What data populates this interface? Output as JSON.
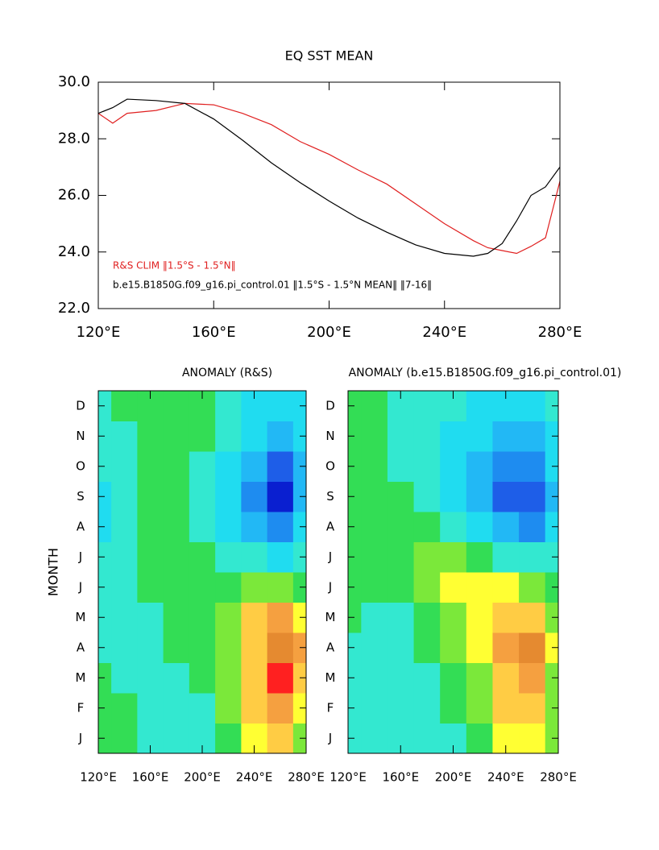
{
  "chart_data": [
    {
      "type": "line",
      "title": "EQ SST MEAN",
      "x": [
        120,
        125,
        130,
        140,
        150,
        160,
        170,
        180,
        190,
        200,
        210,
        220,
        230,
        240,
        250,
        255,
        260,
        265,
        270,
        275,
        280
      ],
      "series": [
        {
          "name": "R&S CLIM ‖1.5°S - 1.5°N‖",
          "color": "#e02020",
          "values": [
            28.9,
            28.55,
            28.9,
            29.0,
            29.25,
            29.2,
            28.9,
            28.5,
            27.9,
            27.45,
            26.9,
            26.4,
            25.7,
            25.0,
            24.4,
            24.15,
            24.05,
            23.95,
            24.2,
            24.5,
            26.5
          ]
        },
        {
          "name": "b.e15.B1850G.f09_g16.pi_control.01 ‖1.5°S - 1.5°N MEAN‖ ‖7-16‖",
          "color": "#000000",
          "values": [
            28.9,
            29.1,
            29.4,
            29.35,
            29.25,
            28.7,
            27.95,
            27.15,
            26.45,
            25.8,
            25.2,
            24.7,
            24.25,
            23.95,
            23.85,
            23.95,
            24.3,
            25.1,
            26.0,
            26.3,
            27.0
          ]
        }
      ],
      "xlim": [
        120,
        280
      ],
      "xticks": [
        {
          "value": 120,
          "label": "120°E"
        },
        {
          "value": 160,
          "label": "160°E"
        },
        {
          "value": 200,
          "label": "200°E"
        },
        {
          "value": 240,
          "label": "240°E"
        },
        {
          "value": 280,
          "label": "280°E"
        }
      ],
      "ylim": [
        22,
        30
      ],
      "yticks": [
        {
          "value": 22,
          "label": "22.0"
        },
        {
          "value": 24,
          "label": "24.0"
        },
        {
          "value": 26,
          "label": "26.0"
        },
        {
          "value": 28,
          "label": "28.0"
        },
        {
          "value": 30,
          "label": "30.0"
        }
      ]
    },
    {
      "type": "contour",
      "title": "ANOMALY (R&S)",
      "ylabel": "MONTH",
      "x": [
        120,
        140,
        160,
        180,
        200,
        220,
        240,
        260,
        280
      ],
      "categories": [
        "J",
        "F",
        "M",
        "A",
        "M",
        "J",
        "J",
        "A",
        "S",
        "O",
        "N",
        "D"
      ],
      "z": [
        [
          0.1,
          0.1,
          -0.1,
          -0.3,
          -0.3,
          0.2,
          0.8,
          1.2,
          0.6
        ],
        [
          0.1,
          0,
          -0.1,
          -0.2,
          -0.1,
          0.4,
          1.2,
          1.8,
          1.0
        ],
        [
          0,
          -0.1,
          -0.1,
          -0.1,
          0.1,
          0.6,
          1.5,
          2.5,
          1.4
        ],
        [
          -0.1,
          -0.2,
          -0.1,
          0,
          0.2,
          0.6,
          1.5,
          2.1,
          1.6
        ],
        [
          -0.2,
          -0.3,
          -0.1,
          0.1,
          0.2,
          0.5,
          1.2,
          1.6,
          1.0
        ],
        [
          -0.2,
          -0.2,
          0.1,
          0.2,
          0.2,
          0.3,
          0.4,
          0.4,
          0.2
        ],
        [
          -0.3,
          -0.2,
          0.1,
          0.2,
          0.1,
          -0.1,
          -0.4,
          -0.6,
          -0.4
        ],
        [
          -0.6,
          -0.2,
          0.1,
          0.1,
          -0.1,
          -0.5,
          -1.0,
          -1.5,
          -0.8
        ],
        [
          -0.6,
          -0.3,
          0,
          0.1,
          -0.2,
          -0.6,
          -1.3,
          -2.1,
          -1.0
        ],
        [
          -0.3,
          -0.2,
          0,
          0.1,
          -0.1,
          -0.5,
          -1.2,
          -1.7,
          -0.9
        ],
        [
          -0.2,
          -0.1,
          0.1,
          0.2,
          0,
          -0.3,
          -0.8,
          -1.0,
          -0.6
        ],
        [
          -0.1,
          0,
          0.1,
          0.2,
          0,
          -0.3,
          -0.6,
          -0.8,
          -0.5
        ]
      ],
      "levels": [
        -2,
        -1.6,
        -1.2,
        -0.8,
        -0.4,
        0,
        0.4,
        0.8,
        1.2,
        1.6,
        2,
        2.4
      ],
      "colors": [
        "#0a1fd0",
        "#1e5ee8",
        "#1e8cf0",
        "#22b8f5",
        "#20dcf0",
        "#33e8d0",
        "#33dd55",
        "#7be83a",
        "#ffff33",
        "#ffcc44",
        "#f5a040",
        "#e58a30",
        "#ff2020"
      ],
      "xlim": [
        120,
        280
      ],
      "xticks": [
        {
          "value": 120,
          "label": "120°E"
        },
        {
          "value": 160,
          "label": "160°E"
        },
        {
          "value": 200,
          "label": "200°E"
        },
        {
          "value": 240,
          "label": "240°E"
        },
        {
          "value": 280,
          "label": "280°E"
        }
      ]
    },
    {
      "type": "contour",
      "title": "ANOMALY (b.e15.B1850G.f09_g16.pi_control.01)",
      "x": [
        120,
        140,
        160,
        180,
        200,
        220,
        240,
        260,
        280
      ],
      "categories": [
        "J",
        "F",
        "M",
        "A",
        "M",
        "J",
        "J",
        "A",
        "S",
        "O",
        "N",
        "D"
      ],
      "z": [
        [
          -0.2,
          -0.3,
          -0.4,
          -0.3,
          -0.2,
          0.2,
          0.8,
          1.0,
          0.4
        ],
        [
          -0.2,
          -0.3,
          -0.4,
          -0.2,
          0.1,
          0.5,
          1.2,
          1.3,
          0.5
        ],
        [
          -0.1,
          -0.2,
          -0.3,
          -0.1,
          0.2,
          0.7,
          1.4,
          1.8,
          0.6
        ],
        [
          -0.1,
          -0.2,
          -0.2,
          0,
          0.4,
          0.9,
          1.6,
          2.2,
          0.8
        ],
        [
          0,
          -0.1,
          -0.1,
          0.2,
          0.6,
          1.0,
          1.4,
          1.4,
          0.6
        ],
        [
          0.1,
          0,
          0.1,
          0.5,
          0.9,
          0.9,
          0.8,
          0.6,
          0.2
        ],
        [
          0.1,
          0.1,
          0.3,
          0.7,
          0.6,
          0.3,
          -0.2,
          -0.4,
          -0.2
        ],
        [
          0.1,
          0,
          0.3,
          0.3,
          -0.1,
          -0.6,
          -1.2,
          -1.4,
          -0.8
        ],
        [
          0.2,
          0,
          0,
          -0.1,
          -0.5,
          -1.1,
          -1.8,
          -1.8,
          -1.0
        ],
        [
          0.2,
          0,
          -0.1,
          -0.3,
          -0.6,
          -1.1,
          -1.5,
          -1.4,
          -0.8
        ],
        [
          0.2,
          0,
          -0.1,
          -0.3,
          -0.5,
          -0.8,
          -1.0,
          -1.0,
          -0.6
        ],
        [
          0.1,
          0,
          -0.1,
          -0.2,
          -0.3,
          -0.5,
          -0.7,
          -0.7,
          -0.4
        ]
      ],
      "levels": [
        -2,
        -1.6,
        -1.2,
        -0.8,
        -0.4,
        0,
        0.4,
        0.8,
        1.2,
        1.6,
        2,
        2.4
      ],
      "colors": [
        "#0a1fd0",
        "#1e5ee8",
        "#1e8cf0",
        "#22b8f5",
        "#20dcf0",
        "#33e8d0",
        "#33dd55",
        "#7be83a",
        "#ffff33",
        "#ffcc44",
        "#f5a040",
        "#e58a30",
        "#ff2020"
      ],
      "xlim": [
        120,
        280
      ],
      "xticks": [
        {
          "value": 120,
          "label": "120°E"
        },
        {
          "value": 160,
          "label": "160°E"
        },
        {
          "value": 200,
          "label": "200°E"
        },
        {
          "value": 240,
          "label": "240°E"
        },
        {
          "value": 280,
          "label": "280°E"
        }
      ]
    }
  ]
}
